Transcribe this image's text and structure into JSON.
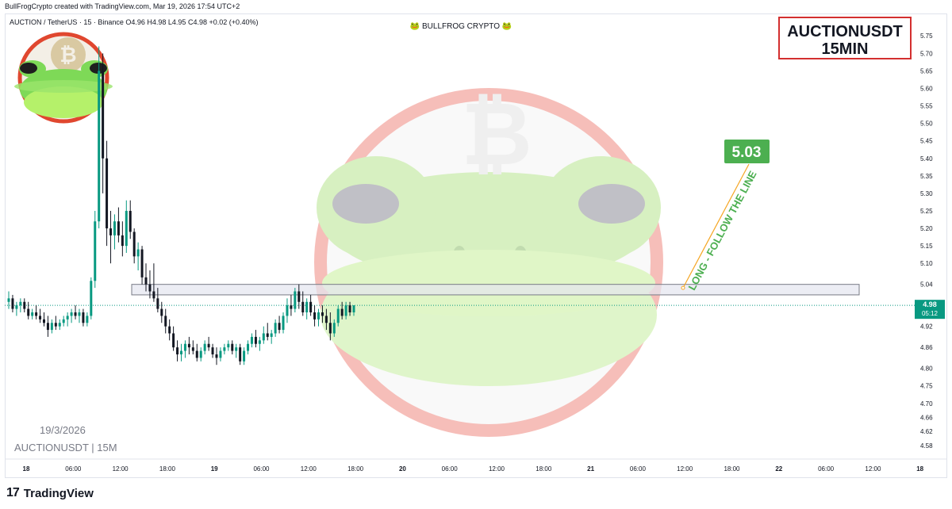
{
  "header": {
    "created_text": "BullFrogCrypto created with TradingView.com, Mar 19, 2026 17:54 UTC+2"
  },
  "chart_data": {
    "type": "candlestick",
    "symbol_line": "AUCTION / TetherUS · 15 · Binance  O4.96  H4.98  L4.95  C4.98  +0.02 (+0.40%)",
    "watermark_center": "🐸 BULLFROG CRYPTO 🐸",
    "title_box": [
      "AUCTIONUSDT",
      "15MIN"
    ],
    "date_label": "19/3/2026",
    "pair_label": "AUCTIONUSDT | 15M",
    "y_axis": {
      "min": 4.55,
      "max": 5.78,
      "ticks": [
        5.75,
        5.7,
        5.65,
        5.6,
        5.55,
        5.5,
        5.45,
        5.4,
        5.35,
        5.3,
        5.25,
        5.2,
        5.15,
        5.1,
        5.04,
        4.98,
        4.92,
        4.86,
        4.8,
        4.75,
        4.7,
        4.66,
        4.62,
        4.58
      ]
    },
    "x_axis": {
      "labels": [
        "18",
        "06:00",
        "12:00",
        "18:00",
        "19",
        "06:00",
        "12:00",
        "18:00",
        "20",
        "06:00",
        "12:00",
        "18:00",
        "21",
        "06:00",
        "12:00",
        "18:00",
        "22",
        "06:00",
        "12:00",
        "18"
      ],
      "bold_labels": [
        "18",
        "19",
        "20",
        "21",
        "22",
        "18"
      ]
    },
    "last_price": {
      "value": 4.98,
      "countdown": "05:12",
      "color": "#089981"
    },
    "resistance_zone": {
      "low": 5.01,
      "high": 5.04
    },
    "target": {
      "value": 5.03,
      "label": "5.03",
      "annotation": "LONG - FOLLOW THE LINE",
      "color": "#4caf50"
    },
    "candles": [
      {
        "t": 0,
        "o": 4.99,
        "h": 5.02,
        "l": 4.97,
        "c": 5.0
      },
      {
        "t": 1,
        "o": 5.0,
        "h": 5.01,
        "l": 4.96,
        "c": 4.97
      },
      {
        "t": 2,
        "o": 4.97,
        "h": 4.99,
        "l": 4.95,
        "c": 4.98
      },
      {
        "t": 3,
        "o": 4.98,
        "h": 5.0,
        "l": 4.96,
        "c": 4.99
      },
      {
        "t": 4,
        "o": 4.99,
        "h": 5.0,
        "l": 4.96,
        "c": 4.97
      },
      {
        "t": 5,
        "o": 4.97,
        "h": 4.99,
        "l": 4.94,
        "c": 4.95
      },
      {
        "t": 6,
        "o": 4.95,
        "h": 4.97,
        "l": 4.94,
        "c": 4.96
      },
      {
        "t": 7,
        "o": 4.96,
        "h": 4.98,
        "l": 4.94,
        "c": 4.95
      },
      {
        "t": 8,
        "o": 4.95,
        "h": 4.97,
        "l": 4.93,
        "c": 4.94
      },
      {
        "t": 9,
        "o": 4.94,
        "h": 4.96,
        "l": 4.92,
        "c": 4.93
      },
      {
        "t": 10,
        "o": 4.93,
        "h": 4.95,
        "l": 4.89,
        "c": 4.91
      },
      {
        "t": 11,
        "o": 4.91,
        "h": 4.94,
        "l": 4.9,
        "c": 4.93
      },
      {
        "t": 12,
        "o": 4.93,
        "h": 4.95,
        "l": 4.91,
        "c": 4.92
      },
      {
        "t": 13,
        "o": 4.92,
        "h": 4.94,
        "l": 4.91,
        "c": 4.93
      },
      {
        "t": 14,
        "o": 4.93,
        "h": 4.95,
        "l": 4.92,
        "c": 4.94
      },
      {
        "t": 15,
        "o": 4.94,
        "h": 4.96,
        "l": 4.92,
        "c": 4.95
      },
      {
        "t": 16,
        "o": 4.95,
        "h": 4.97,
        "l": 4.93,
        "c": 4.96
      },
      {
        "t": 17,
        "o": 4.96,
        "h": 4.98,
        "l": 4.94,
        "c": 4.95
      },
      {
        "t": 18,
        "o": 4.95,
        "h": 4.97,
        "l": 4.93,
        "c": 4.96
      },
      {
        "t": 19,
        "o": 4.96,
        "h": 4.97,
        "l": 4.92,
        "c": 4.93
      },
      {
        "t": 20,
        "o": 4.93,
        "h": 4.96,
        "l": 4.92,
        "c": 4.95
      },
      {
        "t": 21,
        "o": 4.95,
        "h": 5.06,
        "l": 4.94,
        "c": 5.05
      },
      {
        "t": 22,
        "o": 5.05,
        "h": 5.25,
        "l": 5.03,
        "c": 5.22
      },
      {
        "t": 23,
        "o": 5.22,
        "h": 5.72,
        "l": 5.2,
        "c": 5.65
      },
      {
        "t": 24,
        "o": 5.65,
        "h": 5.7,
        "l": 5.3,
        "c": 5.4
      },
      {
        "t": 25,
        "o": 5.4,
        "h": 5.45,
        "l": 5.15,
        "c": 5.2
      },
      {
        "t": 26,
        "o": 5.2,
        "h": 5.25,
        "l": 5.1,
        "c": 5.18
      },
      {
        "t": 27,
        "o": 5.18,
        "h": 5.24,
        "l": 5.14,
        "c": 5.22
      },
      {
        "t": 28,
        "o": 5.22,
        "h": 5.26,
        "l": 5.16,
        "c": 5.18
      },
      {
        "t": 29,
        "o": 5.18,
        "h": 5.22,
        "l": 5.12,
        "c": 5.15
      },
      {
        "t": 30,
        "o": 5.15,
        "h": 5.28,
        "l": 5.13,
        "c": 5.25
      },
      {
        "t": 31,
        "o": 5.25,
        "h": 5.28,
        "l": 5.17,
        "c": 5.19
      },
      {
        "t": 32,
        "o": 5.19,
        "h": 5.2,
        "l": 5.1,
        "c": 5.12
      },
      {
        "t": 33,
        "o": 5.12,
        "h": 5.16,
        "l": 5.08,
        "c": 5.14
      },
      {
        "t": 34,
        "o": 5.14,
        "h": 5.15,
        "l": 5.04,
        "c": 5.06
      },
      {
        "t": 35,
        "o": 5.06,
        "h": 5.1,
        "l": 5.02,
        "c": 5.04
      },
      {
        "t": 36,
        "o": 5.04,
        "h": 5.08,
        "l": 5.0,
        "c": 5.02
      },
      {
        "t": 37,
        "o": 5.02,
        "h": 5.1,
        "l": 4.99,
        "c": 5.0
      },
      {
        "t": 38,
        "o": 5.0,
        "h": 5.03,
        "l": 4.96,
        "c": 4.97
      },
      {
        "t": 39,
        "o": 4.97,
        "h": 4.99,
        "l": 4.93,
        "c": 4.95
      },
      {
        "t": 40,
        "o": 4.95,
        "h": 4.97,
        "l": 4.9,
        "c": 4.92
      },
      {
        "t": 41,
        "o": 4.92,
        "h": 4.94,
        "l": 4.88,
        "c": 4.9
      },
      {
        "t": 42,
        "o": 4.9,
        "h": 4.92,
        "l": 4.85,
        "c": 4.86
      },
      {
        "t": 43,
        "o": 4.86,
        "h": 4.88,
        "l": 4.82,
        "c": 4.84
      },
      {
        "t": 44,
        "o": 4.84,
        "h": 4.87,
        "l": 4.82,
        "c": 4.85
      },
      {
        "t": 45,
        "o": 4.85,
        "h": 4.88,
        "l": 4.83,
        "c": 4.87
      },
      {
        "t": 46,
        "o": 4.87,
        "h": 4.89,
        "l": 4.84,
        "c": 4.86
      },
      {
        "t": 47,
        "o": 4.86,
        "h": 4.88,
        "l": 4.84,
        "c": 4.85
      },
      {
        "t": 48,
        "o": 4.85,
        "h": 4.87,
        "l": 4.82,
        "c": 4.83
      },
      {
        "t": 49,
        "o": 4.83,
        "h": 4.86,
        "l": 4.82,
        "c": 4.85
      },
      {
        "t": 50,
        "o": 4.85,
        "h": 4.88,
        "l": 4.84,
        "c": 4.87
      },
      {
        "t": 51,
        "o": 4.87,
        "h": 4.89,
        "l": 4.85,
        "c": 4.86
      },
      {
        "t": 52,
        "o": 4.86,
        "h": 4.87,
        "l": 4.83,
        "c": 4.84
      },
      {
        "t": 53,
        "o": 4.84,
        "h": 4.86,
        "l": 4.81,
        "c": 4.83
      },
      {
        "t": 54,
        "o": 4.83,
        "h": 4.86,
        "l": 4.82,
        "c": 4.85
      },
      {
        "t": 55,
        "o": 4.85,
        "h": 4.87,
        "l": 4.84,
        "c": 4.86
      },
      {
        "t": 56,
        "o": 4.86,
        "h": 4.88,
        "l": 4.85,
        "c": 4.87
      },
      {
        "t": 57,
        "o": 4.87,
        "h": 4.88,
        "l": 4.84,
        "c": 4.85
      },
      {
        "t": 58,
        "o": 4.85,
        "h": 4.87,
        "l": 4.83,
        "c": 4.86
      },
      {
        "t": 59,
        "o": 4.86,
        "h": 4.87,
        "l": 4.81,
        "c": 4.82
      },
      {
        "t": 60,
        "o": 4.82,
        "h": 4.86,
        "l": 4.81,
        "c": 4.85
      },
      {
        "t": 61,
        "o": 4.85,
        "h": 4.88,
        "l": 4.84,
        "c": 4.87
      },
      {
        "t": 62,
        "o": 4.87,
        "h": 4.9,
        "l": 4.86,
        "c": 4.89
      },
      {
        "t": 63,
        "o": 4.89,
        "h": 4.91,
        "l": 4.86,
        "c": 4.87
      },
      {
        "t": 64,
        "o": 4.87,
        "h": 4.89,
        "l": 4.85,
        "c": 4.88
      },
      {
        "t": 65,
        "o": 4.88,
        "h": 4.92,
        "l": 4.87,
        "c": 4.9
      },
      {
        "t": 66,
        "o": 4.9,
        "h": 4.93,
        "l": 4.88,
        "c": 4.89
      },
      {
        "t": 67,
        "o": 4.89,
        "h": 4.91,
        "l": 4.87,
        "c": 4.9
      },
      {
        "t": 68,
        "o": 4.9,
        "h": 4.94,
        "l": 4.89,
        "c": 4.93
      },
      {
        "t": 69,
        "o": 4.93,
        "h": 4.95,
        "l": 4.9,
        "c": 4.91
      },
      {
        "t": 70,
        "o": 4.91,
        "h": 4.96,
        "l": 4.9,
        "c": 4.95
      },
      {
        "t": 71,
        "o": 4.95,
        "h": 5.0,
        "l": 4.93,
        "c": 4.98
      },
      {
        "t": 72,
        "o": 4.98,
        "h": 5.01,
        "l": 4.95,
        "c": 4.97
      },
      {
        "t": 73,
        "o": 4.97,
        "h": 5.03,
        "l": 4.96,
        "c": 5.02
      },
      {
        "t": 74,
        "o": 5.02,
        "h": 5.04,
        "l": 4.97,
        "c": 4.99
      },
      {
        "t": 75,
        "o": 4.99,
        "h": 5.02,
        "l": 4.95,
        "c": 4.96
      },
      {
        "t": 76,
        "o": 4.96,
        "h": 5.0,
        "l": 4.94,
        "c": 4.99
      },
      {
        "t": 77,
        "o": 4.99,
        "h": 5.01,
        "l": 4.95,
        "c": 4.96
      },
      {
        "t": 78,
        "o": 4.96,
        "h": 4.98,
        "l": 4.92,
        "c": 4.94
      },
      {
        "t": 79,
        "o": 4.94,
        "h": 4.97,
        "l": 4.92,
        "c": 4.96
      },
      {
        "t": 80,
        "o": 4.96,
        "h": 4.98,
        "l": 4.93,
        "c": 4.95
      },
      {
        "t": 81,
        "o": 4.95,
        "h": 4.97,
        "l": 4.91,
        "c": 4.93
      },
      {
        "t": 82,
        "o": 4.93,
        "h": 4.96,
        "l": 4.88,
        "c": 4.9
      },
      {
        "t": 83,
        "o": 4.9,
        "h": 4.94,
        "l": 4.89,
        "c": 4.93
      },
      {
        "t": 84,
        "o": 4.93,
        "h": 4.98,
        "l": 4.92,
        "c": 4.97
      },
      {
        "t": 85,
        "o": 4.97,
        "h": 4.99,
        "l": 4.94,
        "c": 4.95
      },
      {
        "t": 86,
        "o": 4.95,
        "h": 4.99,
        "l": 4.94,
        "c": 4.98
      },
      {
        "t": 87,
        "o": 4.98,
        "h": 4.99,
        "l": 4.95,
        "c": 4.96
      },
      {
        "t": 88,
        "o": 4.96,
        "h": 4.98,
        "l": 4.95,
        "c": 4.98
      }
    ]
  },
  "footer": {
    "brand": "TradingView",
    "brand_mark": "17"
  }
}
